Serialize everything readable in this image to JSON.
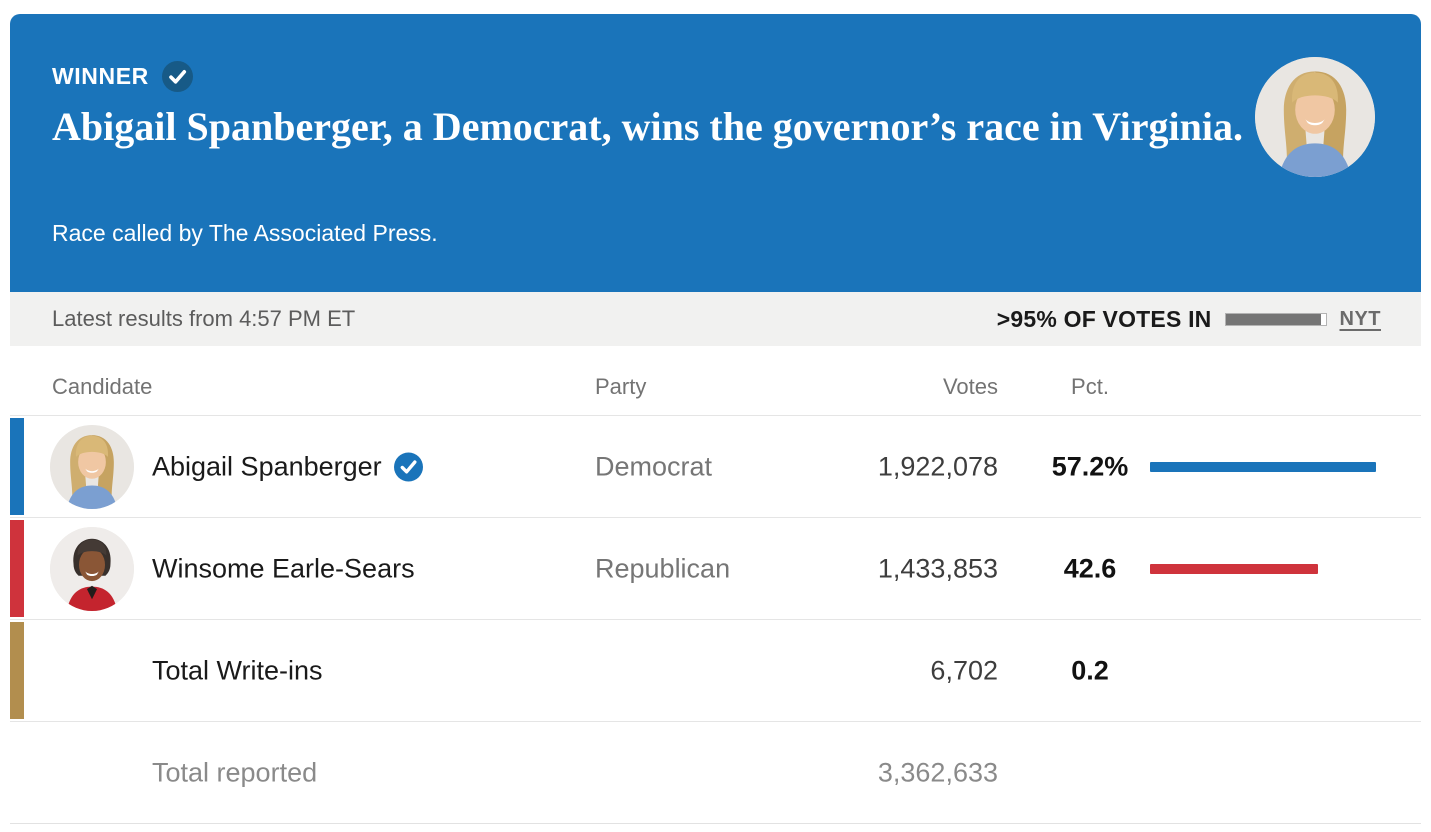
{
  "banner": {
    "winner_label": "WINNER",
    "headline": "Abigail Spanberger, a Democrat, wins the governor’s race in Virginia.",
    "subtitle": "Race called by The Associated Press."
  },
  "status_bar": {
    "latest_results": "Latest results from 4:57 PM ET",
    "votes_in_label": ">95% OF VOTES IN",
    "votes_in_pct": 95,
    "source_label": "NYT"
  },
  "table": {
    "headers": {
      "candidate": "Candidate",
      "party": "Party",
      "votes": "Votes",
      "pct": "Pct."
    },
    "rows": [
      {
        "name": "Abigail Spanberger",
        "party": "Democrat",
        "votes": "1,922,078",
        "pct": "57.2%",
        "pct_value": 57.2,
        "winner": true,
        "accent_color": "#1a74ba",
        "bar_color": "#1a74ba"
      },
      {
        "name": "Winsome Earle-Sears",
        "party": "Republican",
        "votes": "1,433,853",
        "pct": "42.6",
        "pct_value": 42.6,
        "winner": false,
        "accent_color": "#cf333c",
        "bar_color": "#cf333c"
      },
      {
        "name": "Total Write-ins",
        "party": "",
        "votes": "6,702",
        "pct": "0.2",
        "pct_value": 0.2,
        "winner": false,
        "accent_color": "#b28e4e",
        "bar_color": null
      }
    ],
    "footer": {
      "label": "Total reported",
      "votes": "3,362,633"
    }
  },
  "colors": {
    "banner_background": "#1a74ba",
    "winner_badge": "#175a87",
    "democrat": "#1a74ba",
    "republican": "#cf333c",
    "write_ins": "#b28e4e",
    "status_bar_background": "#f1f1f0",
    "progress_fill": "#757575"
  },
  "icons": {
    "check_glyph": "✓"
  }
}
